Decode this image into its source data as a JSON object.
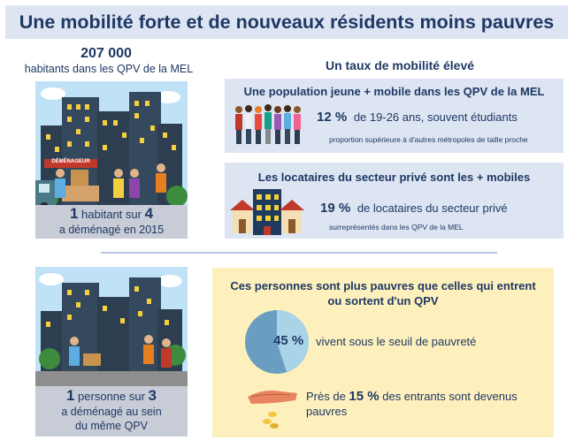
{
  "banner": {
    "title": "Une mobilité forte et de nouveaux résidents moins pauvres"
  },
  "population": {
    "number": "207 000",
    "label": "habitants dans les QPV de la MEL"
  },
  "moving_truck": {
    "sign": "DÉMÉNAGEUR"
  },
  "stat_moved": {
    "big1": "1",
    "mid": " habitant sur ",
    "big2": "4",
    "line2": "a déménagé en 2015"
  },
  "stat_same_qpv": {
    "big1": "1",
    "mid": " personne sur ",
    "big2": "3",
    "line2": "a déménagé au sein",
    "line3": "du même QPV"
  },
  "mobility": {
    "title": "Un taux de mobilité élevé",
    "young": {
      "title": "Une population jeune + mobile dans les QPV de la MEL",
      "pct": "12 %",
      "text": "de 19-26 ans, souvent étudiants",
      "note": "proportion supérieure à d'autres métropoles de taille proche"
    },
    "private": {
      "title": "Les locataires du secteur privé sont les + mobiles",
      "pct": "19 %",
      "text": "de locataires du secteur privé",
      "note": "surreprésentés dans les QPV de la MEL"
    }
  },
  "poverty": {
    "title_line1": "Ces personnes sont plus pauvres que celles qui entrent",
    "title_line2": "ou sortent d'un QPV",
    "pie_share": 0.45,
    "pie_pct": "45 %",
    "pie_text": "vivent sous le seuil de pauvreté",
    "entrants_prefix": "Près de ",
    "entrants_pct": "15 %",
    "entrants_text": " des entrants sont devenus pauvres"
  },
  "colors": {
    "navy": "#1f3864",
    "light_blue": "#dde5f3",
    "pale_yellow": "#fdf0bd",
    "pie_dark": "#6a9ec0",
    "pie_light": "#a9d4e8"
  }
}
